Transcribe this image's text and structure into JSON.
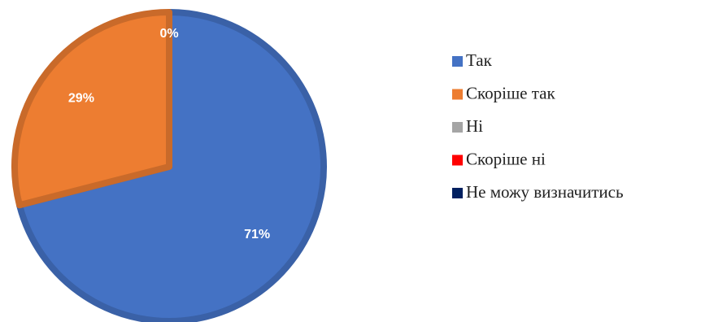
{
  "chart_data": {
    "type": "pie",
    "categories": [
      "Так",
      "Скоріше так",
      "Ні",
      "Скоріше ні",
      "Не можу визначитись"
    ],
    "values": [
      71,
      29,
      0,
      0,
      0
    ],
    "value_labels": [
      "71%",
      "29%",
      "0%",
      null,
      null
    ],
    "colors": [
      "#4472c4",
      "#ed7d31",
      "#a5a5a5",
      "#ff0000",
      "#002060"
    ],
    "legend": "right"
  }
}
